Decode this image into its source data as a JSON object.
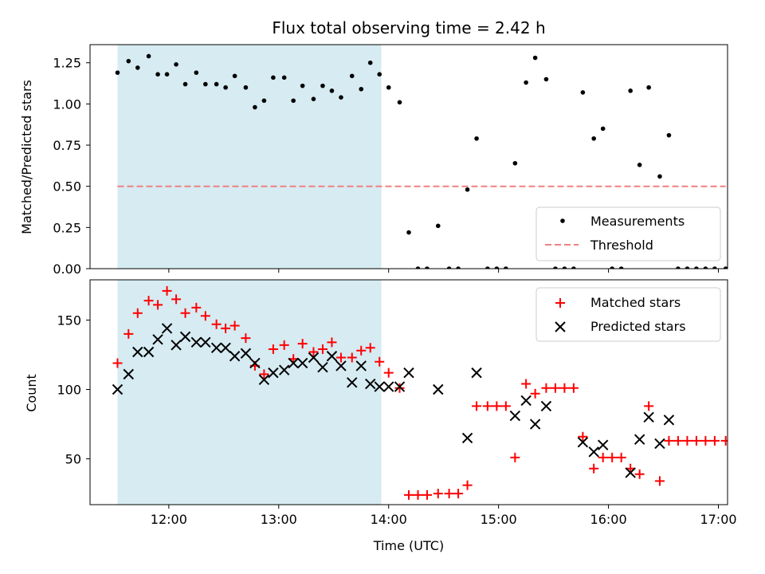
{
  "chart_data": [
    {
      "type": "scatter",
      "title": "Flux total observing time = 2.42 h",
      "xlabel": "",
      "ylabel": "Matched/Predicted stars",
      "xlim": [
        "11:17",
        "17:05"
      ],
      "ylim": [
        0,
        1.36
      ],
      "xticks": [
        "12:00",
        "13:00",
        "14:00",
        "15:00",
        "16:00",
        "17:00"
      ],
      "yticks": [
        "0.00",
        "0.25",
        "0.50",
        "0.75",
        "1.00",
        "1.25"
      ],
      "shaded_region": {
        "x": [
          "11:32",
          "13:56"
        ],
        "color": "#add8e6"
      },
      "legend_position": "lower right",
      "series": [
        {
          "name": "Measurements",
          "marker": "dot",
          "color": "#000000",
          "points": [
            [
              "11:32",
              1.19
            ],
            [
              "11:38",
              1.26
            ],
            [
              "11:43",
              1.22
            ],
            [
              "11:49",
              1.29
            ],
            [
              "11:54",
              1.18
            ],
            [
              "11:59",
              1.18
            ],
            [
              "12:04",
              1.24
            ],
            [
              "12:09",
              1.12
            ],
            [
              "12:15",
              1.19
            ],
            [
              "12:20",
              1.12
            ],
            [
              "12:26",
              1.12
            ],
            [
              "12:31",
              1.1
            ],
            [
              "12:36",
              1.17
            ],
            [
              "12:42",
              1.1
            ],
            [
              "12:47",
              0.98
            ],
            [
              "12:52",
              1.02
            ],
            [
              "12:57",
              1.16
            ],
            [
              "13:03",
              1.16
            ],
            [
              "13:08",
              1.02
            ],
            [
              "13:13",
              1.11
            ],
            [
              "13:19",
              1.03
            ],
            [
              "13:24",
              1.11
            ],
            [
              "13:29",
              1.08
            ],
            [
              "13:34",
              1.04
            ],
            [
              "13:40",
              1.17
            ],
            [
              "13:45",
              1.09
            ],
            [
              "13:50",
              1.25
            ],
            [
              "13:55",
              1.18
            ],
            [
              "14:00",
              1.1
            ],
            [
              "14:06",
              1.01
            ],
            [
              "14:11",
              0.22
            ],
            [
              "14:16",
              0.0
            ],
            [
              "14:21",
              0.0
            ],
            [
              "14:27",
              0.26
            ],
            [
              "14:33",
              0.0
            ],
            [
              "14:38",
              0.0
            ],
            [
              "14:43",
              0.48
            ],
            [
              "14:48",
              0.79
            ],
            [
              "14:54",
              0.0
            ],
            [
              "14:59",
              0.0
            ],
            [
              "15:04",
              0.0
            ],
            [
              "15:09",
              0.64
            ],
            [
              "15:15",
              1.13
            ],
            [
              "15:20",
              1.28
            ],
            [
              "15:26",
              1.15
            ],
            [
              "15:31",
              0.0
            ],
            [
              "15:36",
              0.0
            ],
            [
              "15:41",
              0.0
            ],
            [
              "15:46",
              1.07
            ],
            [
              "15:52",
              0.79
            ],
            [
              "15:57",
              0.85
            ],
            [
              "16:02",
              0.0
            ],
            [
              "16:07",
              0.0
            ],
            [
              "16:12",
              1.08
            ],
            [
              "16:17",
              0.63
            ],
            [
              "16:22",
              1.1
            ],
            [
              "16:28",
              0.56
            ],
            [
              "16:33",
              0.81
            ],
            [
              "16:38",
              0.0
            ],
            [
              "16:43",
              0.0
            ],
            [
              "16:48",
              0.0
            ],
            [
              "16:53",
              0.0
            ],
            [
              "16:58",
              0.0
            ],
            [
              "17:04",
              0.0
            ]
          ]
        },
        {
          "name": "Threshold",
          "marker": "dashed-line",
          "color": "#f08080",
          "points": [
            [
              "11:32",
              0.5
            ],
            [
              "17:04",
              0.5
            ]
          ]
        }
      ]
    },
    {
      "type": "scatter",
      "title": "",
      "xlabel": "Time (UTC)",
      "ylabel": "Count",
      "xlim": [
        "11:17",
        "17:05"
      ],
      "ylim": [
        17,
        179
      ],
      "xticks": [
        "12:00",
        "13:00",
        "14:00",
        "15:00",
        "16:00",
        "17:00"
      ],
      "yticks": [
        "50",
        "100",
        "150"
      ],
      "shaded_region": {
        "x": [
          "11:32",
          "13:56"
        ],
        "color": "#add8e6"
      },
      "legend_position": "upper right",
      "series": [
        {
          "name": "Matched stars",
          "marker": "plus",
          "color": "#ff0000",
          "points": [
            [
              "11:32",
              119
            ],
            [
              "11:38",
              140
            ],
            [
              "11:43",
              155
            ],
            [
              "11:49",
              164
            ],
            [
              "11:54",
              161
            ],
            [
              "11:59",
              171
            ],
            [
              "12:04",
              165
            ],
            [
              "12:09",
              155
            ],
            [
              "12:15",
              159
            ],
            [
              "12:20",
              153
            ],
            [
              "12:26",
              147
            ],
            [
              "12:31",
              144
            ],
            [
              "12:36",
              146
            ],
            [
              "12:42",
              137
            ],
            [
              "12:47",
              117
            ],
            [
              "12:52",
              111
            ],
            [
              "12:57",
              129
            ],
            [
              "13:03",
              132
            ],
            [
              "13:08",
              122
            ],
            [
              "13:13",
              133
            ],
            [
              "13:19",
              127
            ],
            [
              "13:24",
              129
            ],
            [
              "13:29",
              134
            ],
            [
              "13:34",
              123
            ],
            [
              "13:40",
              123
            ],
            [
              "13:45",
              128
            ],
            [
              "13:50",
              130
            ],
            [
              "13:55",
              120
            ],
            [
              "14:00",
              112
            ],
            [
              "14:06",
              101
            ],
            [
              "14:11",
              24
            ],
            [
              "14:16",
              24
            ],
            [
              "14:21",
              24
            ],
            [
              "14:27",
              25
            ],
            [
              "14:33",
              25
            ],
            [
              "14:38",
              25
            ],
            [
              "14:43",
              31
            ],
            [
              "14:48",
              88
            ],
            [
              "14:54",
              88
            ],
            [
              "14:59",
              88
            ],
            [
              "15:04",
              88
            ],
            [
              "15:09",
              51
            ],
            [
              "15:15",
              104
            ],
            [
              "15:20",
              97
            ],
            [
              "15:26",
              101
            ],
            [
              "15:31",
              101
            ],
            [
              "15:36",
              101
            ],
            [
              "15:41",
              101
            ],
            [
              "15:46",
              66
            ],
            [
              "15:52",
              43
            ],
            [
              "15:57",
              51
            ],
            [
              "16:02",
              51
            ],
            [
              "16:07",
              51
            ],
            [
              "16:12",
              43
            ],
            [
              "16:17",
              39
            ],
            [
              "16:22",
              88
            ],
            [
              "16:28",
              34
            ],
            [
              "16:33",
              63
            ],
            [
              "16:38",
              63
            ],
            [
              "16:43",
              63
            ],
            [
              "16:48",
              63
            ],
            [
              "16:53",
              63
            ],
            [
              "16:58",
              63
            ],
            [
              "17:04",
              63
            ]
          ]
        },
        {
          "name": "Predicted stars",
          "marker": "x",
          "color": "#000000",
          "points": [
            [
              "11:32",
              100
            ],
            [
              "11:38",
              111
            ],
            [
              "11:43",
              127
            ],
            [
              "11:49",
              127
            ],
            [
              "11:54",
              136
            ],
            [
              "11:59",
              144
            ],
            [
              "12:04",
              132
            ],
            [
              "12:09",
              138
            ],
            [
              "12:15",
              134
            ],
            [
              "12:20",
              134
            ],
            [
              "12:26",
              130
            ],
            [
              "12:31",
              130
            ],
            [
              "12:36",
              124
            ],
            [
              "12:42",
              126
            ],
            [
              "12:47",
              119
            ],
            [
              "12:52",
              107
            ],
            [
              "12:57",
              112
            ],
            [
              "13:03",
              114
            ],
            [
              "13:08",
              119
            ],
            [
              "13:13",
              119
            ],
            [
              "13:19",
              123
            ],
            [
              "13:24",
              116
            ],
            [
              "13:29",
              124
            ],
            [
              "13:34",
              117
            ],
            [
              "13:40",
              105
            ],
            [
              "13:45",
              117
            ],
            [
              "13:50",
              104
            ],
            [
              "13:55",
              102
            ],
            [
              "14:00",
              102
            ],
            [
              "14:06",
              102
            ],
            [
              "14:11",
              112
            ],
            [
              "14:27",
              100
            ],
            [
              "14:43",
              65
            ],
            [
              "14:48",
              112
            ],
            [
              "15:09",
              81
            ],
            [
              "15:15",
              92
            ],
            [
              "15:20",
              75
            ],
            [
              "15:26",
              88
            ],
            [
              "15:46",
              62
            ],
            [
              "15:52",
              55
            ],
            [
              "15:57",
              60
            ],
            [
              "16:12",
              40
            ],
            [
              "16:17",
              64
            ],
            [
              "16:22",
              80
            ],
            [
              "16:28",
              61
            ],
            [
              "16:33",
              78
            ]
          ]
        }
      ]
    }
  ]
}
